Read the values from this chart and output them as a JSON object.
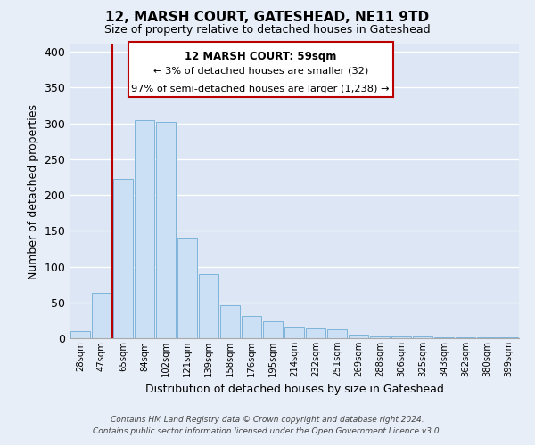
{
  "title": "12, MARSH COURT, GATESHEAD, NE11 9TD",
  "subtitle": "Size of property relative to detached houses in Gateshead",
  "xlabel": "Distribution of detached houses by size in Gateshead",
  "ylabel": "Number of detached properties",
  "bar_labels": [
    "28sqm",
    "47sqm",
    "65sqm",
    "84sqm",
    "102sqm",
    "121sqm",
    "139sqm",
    "158sqm",
    "176sqm",
    "195sqm",
    "214sqm",
    "232sqm",
    "251sqm",
    "269sqm",
    "288sqm",
    "306sqm",
    "325sqm",
    "343sqm",
    "362sqm",
    "380sqm",
    "399sqm"
  ],
  "bar_values": [
    10,
    63,
    223,
    305,
    302,
    140,
    90,
    46,
    31,
    23,
    16,
    14,
    12,
    5,
    3,
    2,
    2,
    1,
    1,
    1,
    1
  ],
  "bar_color": "#cce0f5",
  "bar_edge_color": "#7fb3d9",
  "ylim": [
    0,
    410
  ],
  "yticks": [
    0,
    50,
    100,
    150,
    200,
    250,
    300,
    350,
    400
  ],
  "property_line_x": 1.5,
  "property_line_color": "#bb0000",
  "annotation_title": "12 MARSH COURT: 59sqm",
  "annotation_line1": "← 3% of detached houses are smaller (32)",
  "annotation_line2": "97% of semi-detached houses are larger (1,238) →",
  "annotation_box_color": "#ffffff",
  "annotation_box_edge": "#bb0000",
  "footer_line1": "Contains HM Land Registry data © Crown copyright and database right 2024.",
  "footer_line2": "Contains public sector information licensed under the Open Government Licence v3.0.",
  "background_color": "#e8eef8",
  "grid_color": "#d0d8e8",
  "plot_bg_color": "#dce6f5"
}
